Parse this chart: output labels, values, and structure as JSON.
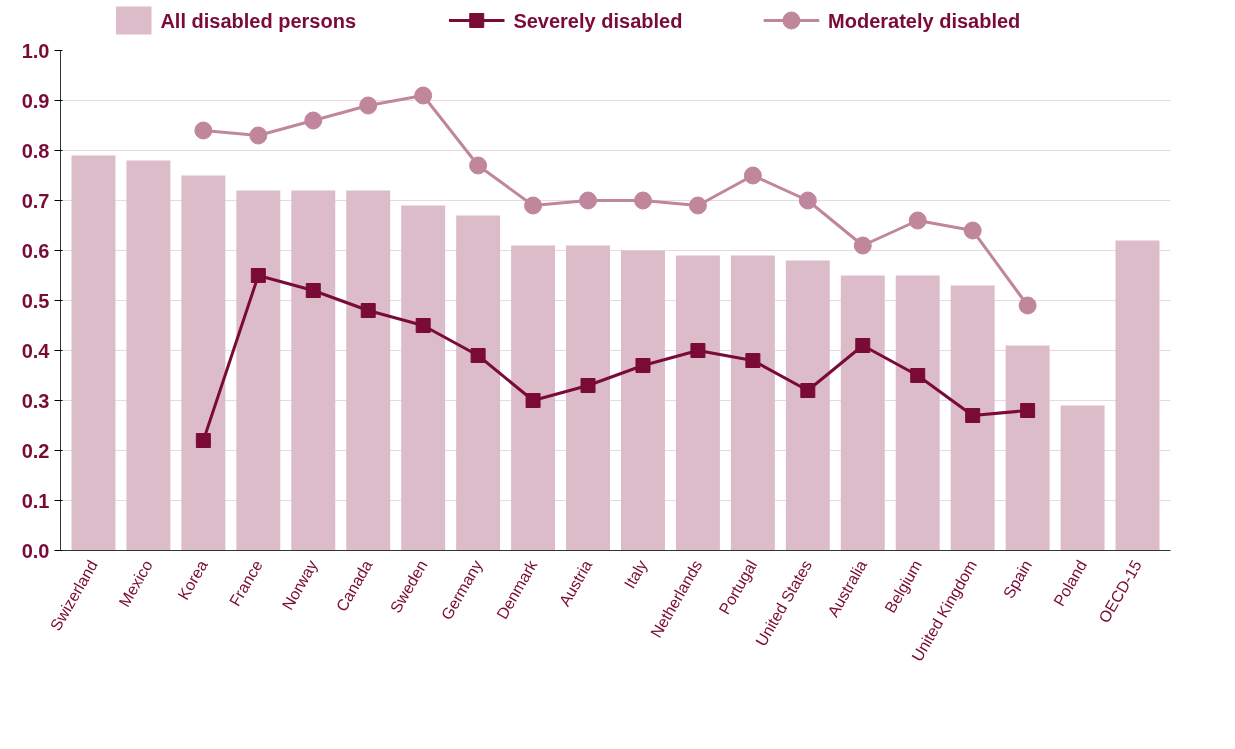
{
  "chart_data": {
    "type": "bar",
    "categories": [
      "Swizerland",
      "Mexico",
      "Korea",
      "France",
      "Norway",
      "Canada",
      "Sweden",
      "Germany",
      "Denmark",
      "Austria",
      "Italy",
      "Netherlands",
      "Portugal",
      "United States",
      "Australia",
      "Belgium",
      "United Kingdom",
      "Spain",
      "Poland",
      "OECD-15"
    ],
    "series": [
      {
        "name": "All disabled persons",
        "color": "#dcbcc9",
        "values": [
          0.79,
          0.78,
          0.75,
          0.72,
          0.72,
          0.72,
          0.69,
          0.67,
          0.61,
          0.61,
          0.6,
          0.59,
          0.59,
          0.58,
          0.55,
          0.55,
          0.53,
          0.41,
          0.29,
          0.62
        ]
      },
      {
        "name": "Severely disabled",
        "type": "line",
        "marker": "square",
        "color": "#7a0a36",
        "values": [
          null,
          null,
          0.22,
          0.55,
          0.52,
          0.48,
          0.45,
          0.39,
          0.3,
          0.33,
          0.37,
          0.4,
          0.38,
          0.32,
          0.41,
          0.35,
          0.27,
          0.28,
          null,
          null
        ]
      },
      {
        "name": "Moderately disabled",
        "type": "line",
        "marker": "circle",
        "color": "#c0869c",
        "values": [
          null,
          null,
          0.84,
          0.83,
          0.86,
          0.89,
          0.91,
          0.77,
          0.69,
          0.7,
          0.7,
          0.69,
          0.75,
          0.7,
          0.61,
          0.66,
          0.64,
          0.49,
          null,
          null
        ]
      }
    ],
    "ylim": [
      0,
      1.0
    ],
    "yticks": [
      {
        "value": 0,
        "label": "0.0"
      },
      {
        "value": 0.1,
        "label": "0.1"
      },
      {
        "value": 0.2,
        "label": "0.2"
      },
      {
        "value": 0.3,
        "label": "0.3"
      },
      {
        "value": 0.4,
        "label": "0.4"
      },
      {
        "value": 0.5,
        "label": "0.5"
      },
      {
        "value": 0.6,
        "label": "0.6"
      },
      {
        "value": 0.7,
        "label": "0.7"
      },
      {
        "value": 0.8,
        "label": "0.8"
      },
      {
        "value": 0.9,
        "label": "0.9"
      },
      {
        "value": 1.0,
        "label": "1.0"
      }
    ],
    "grid": "y",
    "legend": "top",
    "line_style": "solid"
  }
}
